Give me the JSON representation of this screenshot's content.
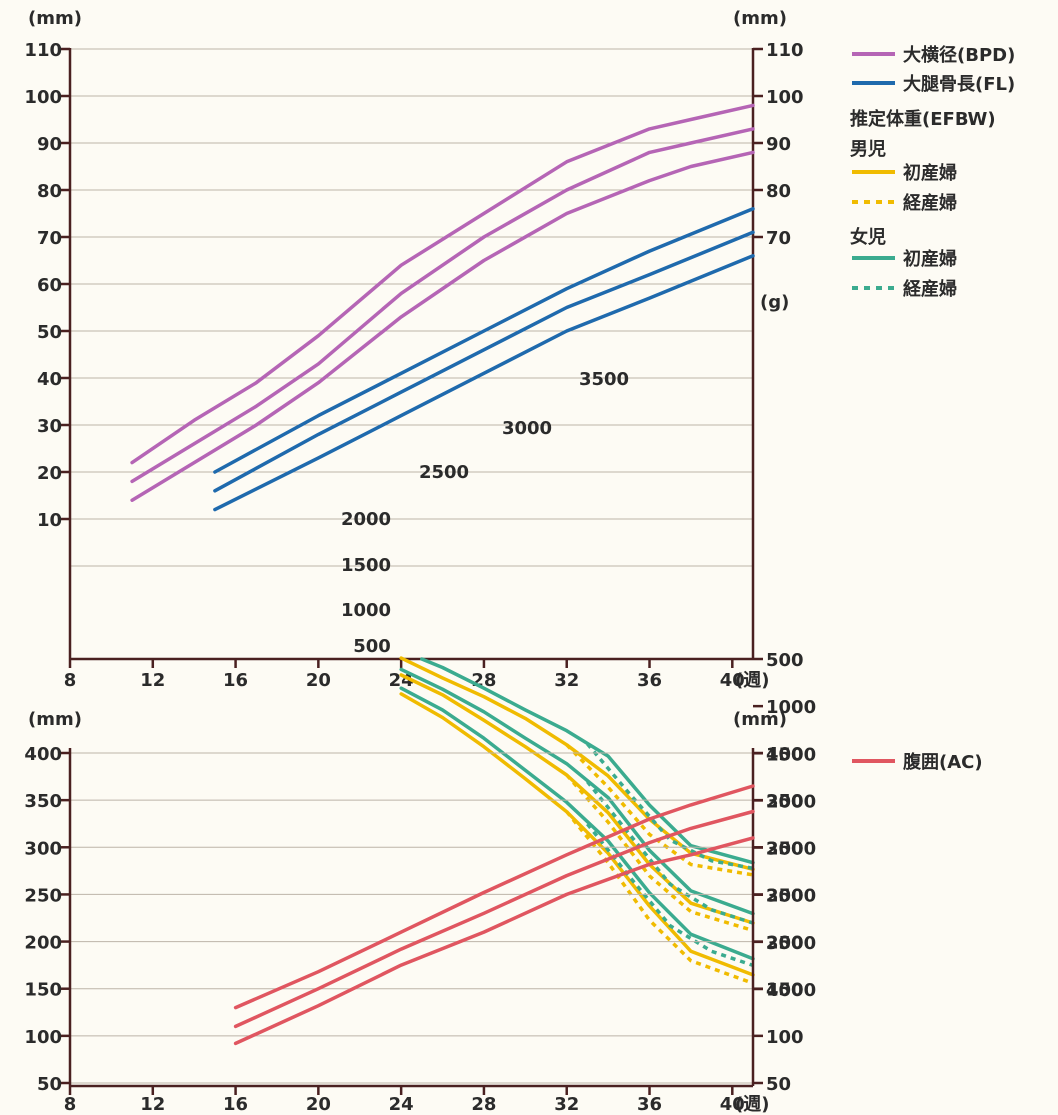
{
  "chart_data": [
    {
      "type": "line",
      "title": "",
      "x_axis": {
        "range": [
          8,
          41
        ],
        "ticks": [
          8,
          12,
          16,
          20,
          24,
          28,
          32,
          36,
          40
        ],
        "unit_label": "(週)"
      },
      "y_axis_left": {
        "unit": "(mm)",
        "range": [
          0,
          110
        ],
        "ticks": [
          10,
          20,
          30,
          40,
          50,
          60,
          70,
          80,
          90,
          100,
          110
        ]
      },
      "y_axis_right_mm": {
        "unit": "(mm)",
        "ticks": [
          70,
          80,
          90,
          100,
          110
        ]
      },
      "y_axis_right_g": {
        "unit": "(g)",
        "range": [
          500,
          4000
        ],
        "ticks": [
          500,
          1000,
          1500,
          2000,
          2500,
          3000,
          3500,
          4000
        ]
      },
      "inner_weight_labels": [
        "500",
        "1000",
        "1500",
        "2000",
        "2500",
        "3000",
        "3500"
      ],
      "grid": true,
      "legend": {
        "placement": "right",
        "items": [
          {
            "label": "大横径(BPD)",
            "color": "#b565b5",
            "style": "solid"
          },
          {
            "label": "大腿骨長(FL)",
            "color": "#1f6aad",
            "style": "solid"
          }
        ],
        "efbw_title": "推定体重(EFBW)",
        "boy_title": "男児",
        "girl_title": "女児",
        "boy_items": [
          {
            "label": "初産婦",
            "color": "#f0bb00",
            "style": "solid"
          },
          {
            "label": "経産婦",
            "color": "#f0bb00",
            "style": "dotted"
          }
        ],
        "girl_items": [
          {
            "label": "初産婦",
            "color": "#3bab8f",
            "style": "solid"
          },
          {
            "label": "経産婦",
            "color": "#3bab8f",
            "style": "dotted"
          }
        ]
      },
      "series": [
        {
          "group": "BPD",
          "color": "#b565b5",
          "style": "solid",
          "axis": "mm",
          "points": [
            [
              11,
              22
            ],
            [
              14,
              31
            ],
            [
              17,
              39
            ],
            [
              20,
              49
            ],
            [
              24,
              64
            ],
            [
              28,
              75
            ],
            [
              32,
              86
            ],
            [
              36,
              93
            ],
            [
              38,
              95
            ],
            [
              41,
              98
            ]
          ]
        },
        {
          "group": "BPD",
          "color": "#b565b5",
          "style": "solid",
          "axis": "mm",
          "points": [
            [
              11,
              18
            ],
            [
              14,
              26
            ],
            [
              17,
              34
            ],
            [
              20,
              43
            ],
            [
              24,
              58
            ],
            [
              28,
              70
            ],
            [
              32,
              80
            ],
            [
              36,
              88
            ],
            [
              38,
              90
            ],
            [
              41,
              93
            ]
          ]
        },
        {
          "group": "BPD",
          "color": "#b565b5",
          "style": "solid",
          "axis": "mm",
          "points": [
            [
              11,
              14
            ],
            [
              14,
              22
            ],
            [
              17,
              30
            ],
            [
              20,
              39
            ],
            [
              24,
              53
            ],
            [
              28,
              65
            ],
            [
              32,
              75
            ],
            [
              36,
              82
            ],
            [
              38,
              85
            ],
            [
              41,
              88
            ]
          ]
        },
        {
          "group": "FL",
          "color": "#1f6aad",
          "style": "solid",
          "axis": "mm",
          "points": [
            [
              15,
              20
            ],
            [
              20,
              32
            ],
            [
              24,
              41
            ],
            [
              28,
              50
            ],
            [
              32,
              59
            ],
            [
              36,
              67
            ],
            [
              41,
              76
            ]
          ]
        },
        {
          "group": "FL",
          "color": "#1f6aad",
          "style": "solid",
          "axis": "mm",
          "points": [
            [
              15,
              16
            ],
            [
              20,
              28
            ],
            [
              24,
              37
            ],
            [
              28,
              46
            ],
            [
              32,
              55
            ],
            [
              36,
              62
            ],
            [
              41,
              71
            ]
          ]
        },
        {
          "group": "FL",
          "color": "#1f6aad",
          "style": "solid",
          "axis": "mm",
          "points": [
            [
              15,
              12
            ],
            [
              20,
              23
            ],
            [
              24,
              32
            ],
            [
              28,
              41
            ],
            [
              32,
              50
            ],
            [
              36,
              57
            ],
            [
              41,
              66
            ]
          ]
        },
        {
          "group": "EFBW-boy-primipara",
          "color": "#f0bb00",
          "style": "solid",
          "axis": "g",
          "points": [
            [
              24,
              870
            ],
            [
              26,
              1120
            ],
            [
              28,
              1430
            ],
            [
              30,
              1770
            ],
            [
              32,
              2120
            ],
            [
              34,
              2560
            ],
            [
              36,
              3120
            ],
            [
              38,
              3600
            ],
            [
              41,
              3850
            ]
          ]
        },
        {
          "group": "EFBW-boy-primipara",
          "color": "#f0bb00",
          "style": "solid",
          "axis": "g",
          "points": [
            [
              24,
              670
            ],
            [
              26,
              880
            ],
            [
              28,
              1150
            ],
            [
              30,
              1430
            ],
            [
              32,
              1730
            ],
            [
              34,
              2130
            ],
            [
              36,
              2680
            ],
            [
              38,
              3090
            ],
            [
              41,
              3300
            ]
          ]
        },
        {
          "group": "EFBW-boy-primipara",
          "color": "#f0bb00",
          "style": "solid",
          "axis": "g",
          "points": [
            [
              24,
              490
            ],
            [
              26,
              700
            ],
            [
              28,
              900
            ],
            [
              30,
              1130
            ],
            [
              32,
              1410
            ],
            [
              34,
              1740
            ],
            [
              36,
              2200
            ],
            [
              38,
              2560
            ],
            [
              41,
              2730
            ]
          ]
        },
        {
          "group": "EFBW-boy-multipara",
          "color": "#f0bb00",
          "style": "dotted",
          "axis": "g",
          "points": [
            [
              32,
              2120
            ],
            [
              34,
              2660
            ],
            [
              36,
              3270
            ],
            [
              38,
              3700
            ],
            [
              41,
              3940
            ]
          ]
        },
        {
          "group": "EFBW-boy-multipara",
          "color": "#f0bb00",
          "style": "dotted",
          "axis": "g",
          "points": [
            [
              32,
              1730
            ],
            [
              34,
              2230
            ],
            [
              36,
              2800
            ],
            [
              38,
              3180
            ],
            [
              41,
              3380
            ]
          ]
        },
        {
          "group": "EFBW-boy-multipara",
          "color": "#f0bb00",
          "style": "dotted",
          "axis": "g",
          "points": [
            [
              32,
              1410
            ],
            [
              34,
              1860
            ],
            [
              36,
              2360
            ],
            [
              38,
              2680
            ],
            [
              41,
              2790
            ]
          ]
        },
        {
          "group": "EFBW-girl-primipara",
          "color": "#3bab8f",
          "style": "solid",
          "axis": "g",
          "points": [
            [
              24,
              810
            ],
            [
              26,
              1040
            ],
            [
              28,
              1340
            ],
            [
              30,
              1680
            ],
            [
              32,
              2020
            ],
            [
              34,
              2430
            ],
            [
              36,
              2980
            ],
            [
              38,
              3420
            ],
            [
              41,
              3680
            ]
          ]
        },
        {
          "group": "EFBW-girl-primipara",
          "color": "#3bab8f",
          "style": "solid",
          "axis": "g",
          "points": [
            [
              24,
              610
            ],
            [
              26,
              820
            ],
            [
              28,
              1060
            ],
            [
              30,
              1340
            ],
            [
              32,
              1610
            ],
            [
              34,
              1970
            ],
            [
              36,
              2530
            ],
            [
              38,
              2960
            ],
            [
              41,
              3200
            ]
          ]
        },
        {
          "group": "EFBW-girl-primipara",
          "color": "#3bab8f",
          "style": "solid",
          "axis": "g",
          "points": [
            [
              25,
              500
            ],
            [
              26,
              590
            ],
            [
              28,
              810
            ],
            [
              30,
              1040
            ],
            [
              32,
              1260
            ],
            [
              34,
              1530
            ],
            [
              36,
              2050
            ],
            [
              38,
              2480
            ],
            [
              41,
              2660
            ]
          ]
        },
        {
          "group": "EFBW-girl-multipara",
          "color": "#3bab8f",
          "style": "dotted",
          "axis": "g",
          "points": [
            [
              33,
              2250
            ],
            [
              35,
              2800
            ],
            [
              37,
              3330
            ],
            [
              39,
              3600
            ],
            [
              41,
              3750
            ]
          ]
        },
        {
          "group": "EFBW-girl-multipara",
          "color": "#3bab8f",
          "style": "dotted",
          "axis": "g",
          "points": [
            [
              33,
              1800
            ],
            [
              35,
              2350
            ],
            [
              37,
              2890
            ],
            [
              39,
              3160
            ],
            [
              41,
              3300
            ]
          ]
        },
        {
          "group": "EFBW-girl-multipara",
          "color": "#3bab8f",
          "style": "dotted",
          "axis": "g",
          "points": [
            [
              33,
              1400
            ],
            [
              35,
              1920
            ],
            [
              37,
              2420
            ],
            [
              39,
              2640
            ],
            [
              41,
              2720
            ]
          ]
        }
      ]
    },
    {
      "type": "line",
      "title": "",
      "x_axis": {
        "range": [
          8,
          41
        ],
        "ticks": [
          8,
          12,
          16,
          20,
          24,
          28,
          32,
          36,
          40
        ],
        "unit_label": "(週)"
      },
      "y_axis_left": {
        "unit": "(mm)",
        "range": [
          50,
          400
        ],
        "ticks": [
          50,
          100,
          150,
          200,
          250,
          300,
          350,
          400
        ]
      },
      "y_axis_right": {
        "unit": "(mm)",
        "ticks": [
          50,
          100,
          150,
          200,
          250,
          300,
          350,
          400
        ]
      },
      "grid": true,
      "legend": {
        "placement": "right",
        "items": [
          {
            "label": "腹囲(AC)",
            "color": "#e05660",
            "style": "solid"
          }
        ]
      },
      "series": [
        {
          "group": "AC",
          "color": "#e05660",
          "style": "solid",
          "points": [
            [
              16,
              130
            ],
            [
              20,
              168
            ],
            [
              24,
              210
            ],
            [
              28,
              252
            ],
            [
              32,
              292
            ],
            [
              36,
              330
            ],
            [
              38,
              345
            ],
            [
              41,
              365
            ]
          ]
        },
        {
          "group": "AC",
          "color": "#e05660",
          "style": "solid",
          "points": [
            [
              16,
              110
            ],
            [
              20,
              150
            ],
            [
              24,
              192
            ],
            [
              28,
              230
            ],
            [
              32,
              270
            ],
            [
              36,
              305
            ],
            [
              38,
              320
            ],
            [
              41,
              338
            ]
          ]
        },
        {
          "group": "AC",
          "color": "#e05660",
          "style": "solid",
          "points": [
            [
              16,
              92
            ],
            [
              20,
              132
            ],
            [
              24,
              175
            ],
            [
              28,
              210
            ],
            [
              32,
              250
            ],
            [
              36,
              282
            ],
            [
              38,
              292
            ],
            [
              41,
              310
            ]
          ]
        }
      ]
    }
  ]
}
